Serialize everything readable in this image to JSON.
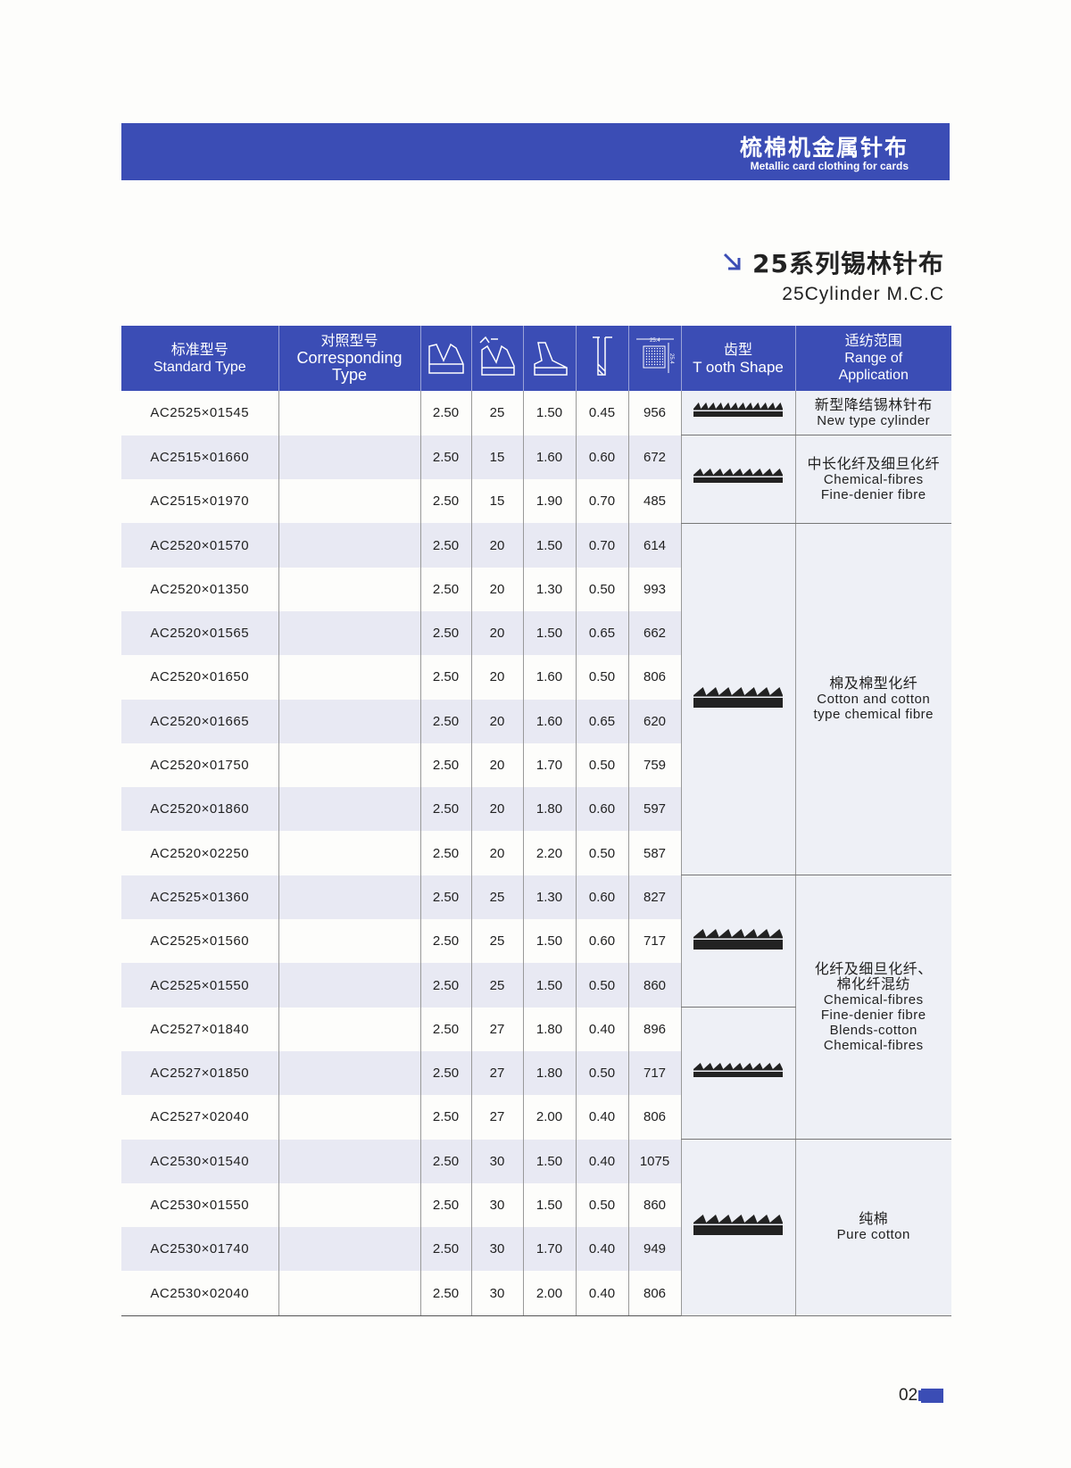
{
  "banner": {
    "title_cn": "梳棉机金属针布",
    "title_en": "Metallic card clothing for cards"
  },
  "section": {
    "title": "25系列锡林针布",
    "subtitle": "25Cylinder M.C.C",
    "arrow_icon": "arrow-down-right-icon",
    "accent": "#3b4db5"
  },
  "table": {
    "headers": {
      "standard_cn": "标准型号",
      "standard_en": "Standard Type",
      "corr_cn": "对照型号",
      "corr_en1": "Corresponding",
      "corr_en2": "Type",
      "icons": [
        "total-height-icon",
        "tooth-angle-icon",
        "tooth-depth-icon",
        "rib-width-icon",
        "point-density-icon"
      ],
      "density_label_h": "25.4",
      "density_label_v": "25.4",
      "shape_cn": "齿型",
      "shape_en": "T ooth Shape",
      "app_cn": "适纺范围",
      "app_en1": "Range of",
      "app_en2": "Application"
    },
    "rows": [
      [
        "AC2525×01545",
        "",
        "2.50",
        "25",
        "1.50",
        "0.45",
        "956"
      ],
      [
        "AC2515×01660",
        "",
        "2.50",
        "15",
        "1.60",
        "0.60",
        "672"
      ],
      [
        "AC2515×01970",
        "",
        "2.50",
        "15",
        "1.90",
        "0.70",
        "485"
      ],
      [
        "AC2520×01570",
        "",
        "2.50",
        "20",
        "1.50",
        "0.70",
        "614"
      ],
      [
        "AC2520×01350",
        "",
        "2.50",
        "20",
        "1.30",
        "0.50",
        "993"
      ],
      [
        "AC2520×01565",
        "",
        "2.50",
        "20",
        "1.50",
        "0.65",
        "662"
      ],
      [
        "AC2520×01650",
        "",
        "2.50",
        "20",
        "1.60",
        "0.50",
        "806"
      ],
      [
        "AC2520×01665",
        "",
        "2.50",
        "20",
        "1.60",
        "0.65",
        "620"
      ],
      [
        "AC2520×01750",
        "",
        "2.50",
        "20",
        "1.70",
        "0.50",
        "759"
      ],
      [
        "AC2520×01860",
        "",
        "2.50",
        "20",
        "1.80",
        "0.60",
        "597"
      ],
      [
        "AC2520×02250",
        "",
        "2.50",
        "20",
        "2.20",
        "0.50",
        "587"
      ],
      [
        "AC2525×01360",
        "",
        "2.50",
        "25",
        "1.30",
        "0.60",
        "827"
      ],
      [
        "AC2525×01560",
        "",
        "2.50",
        "25",
        "1.50",
        "0.60",
        "717"
      ],
      [
        "AC2525×01550",
        "",
        "2.50",
        "25",
        "1.50",
        "0.50",
        "860"
      ],
      [
        "AC2527×01840",
        "",
        "2.50",
        "27",
        "1.80",
        "0.40",
        "896"
      ],
      [
        "AC2527×01850",
        "",
        "2.50",
        "27",
        "1.80",
        "0.50",
        "717"
      ],
      [
        "AC2527×02040",
        "",
        "2.50",
        "27",
        "2.00",
        "0.40",
        "806"
      ],
      [
        "AC2530×01540",
        "",
        "2.50",
        "30",
        "1.50",
        "0.40",
        "1075"
      ],
      [
        "AC2530×01550",
        "",
        "2.50",
        "30",
        "1.50",
        "0.50",
        "860"
      ],
      [
        "AC2530×01740",
        "",
        "2.50",
        "30",
        "1.70",
        "0.40",
        "949"
      ],
      [
        "AC2530×02040",
        "",
        "2.50",
        "30",
        "2.00",
        "0.40",
        "806"
      ]
    ],
    "shape_groups": [
      {
        "start": 0,
        "span": 1,
        "teeth": 12,
        "style": "fine"
      },
      {
        "start": 1,
        "span": 2,
        "teeth": 9,
        "style": "fine"
      },
      {
        "start": 3,
        "span": 8,
        "teeth": 7,
        "style": "hook"
      },
      {
        "start": 11,
        "span": 3,
        "teeth": 7,
        "style": "hook"
      },
      {
        "start": 14,
        "span": 3,
        "teeth": 9,
        "style": "fine"
      },
      {
        "start": 17,
        "span": 4,
        "teeth": 7,
        "style": "hook"
      }
    ],
    "app_groups": [
      {
        "start": 0,
        "span": 1,
        "lines": [
          "新型降结锡林针布",
          "New type cylinder"
        ]
      },
      {
        "start": 1,
        "span": 2,
        "lines": [
          "中长化纤及细旦化纤",
          "Chemical-fibres",
          "Fine-denier fibre"
        ]
      },
      {
        "start": 3,
        "span": 8,
        "lines": [
          "棉及棉型化纤",
          "Cotton and cotton",
          "type chemical fibre"
        ]
      },
      {
        "start": 11,
        "span": 6,
        "lines": [
          "化纤及细旦化纤、",
          "棉化纤混纺",
          "Chemical-fibres",
          "Fine-denier fibre",
          "Blends-cotton",
          "Chemical-fibres"
        ]
      },
      {
        "start": 17,
        "span": 4,
        "lines": [
          "纯棉",
          "Pure cotton"
        ]
      }
    ]
  },
  "footer": {
    "page_number": "02"
  }
}
